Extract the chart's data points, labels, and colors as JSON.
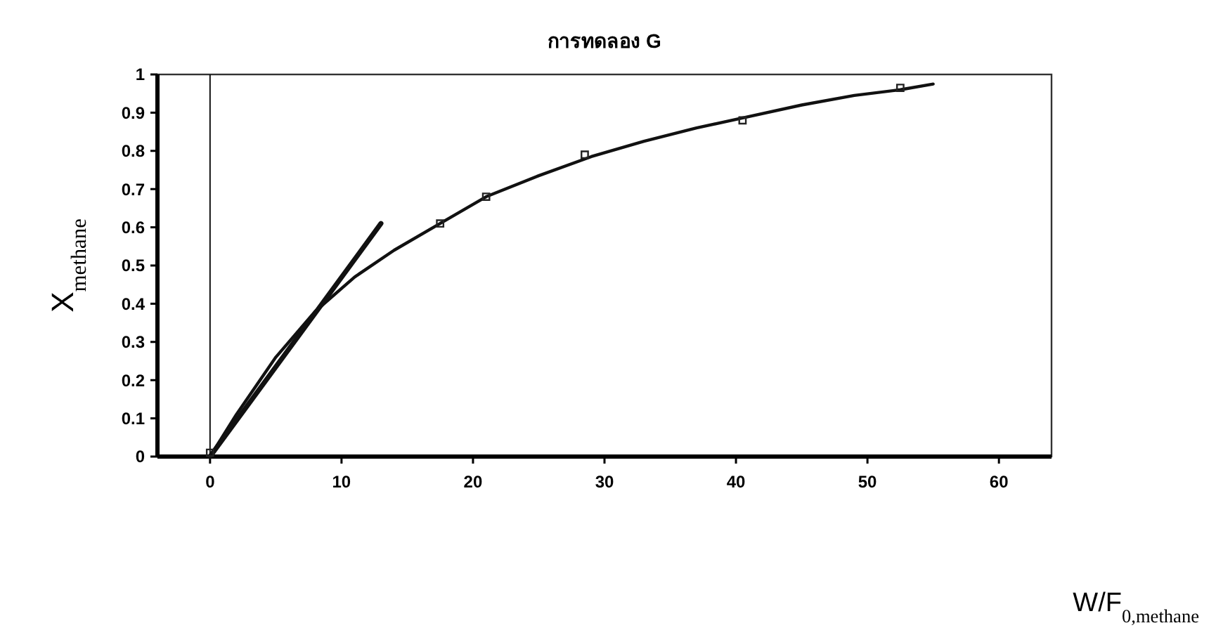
{
  "chart_data": {
    "type": "line",
    "title": "การทดลอง G",
    "xlabel": "W/F$_{0,methane}$",
    "ylabel": "X$_{methane}$",
    "xlim": [
      -4,
      64
    ],
    "xticks": [
      0,
      10,
      20,
      30,
      40,
      50,
      60
    ],
    "ylim": [
      0,
      1
    ],
    "yticks": [
      0,
      0.1,
      0.2,
      0.3,
      0.4,
      0.5,
      0.6,
      0.7,
      0.8,
      0.9,
      1
    ],
    "grid": false,
    "series": [
      {
        "color": "#111111",
        "marker": "none",
        "line_style": "solid",
        "x": [
          0,
          2,
          5,
          8,
          11,
          14,
          17.5,
          21,
          25,
          29,
          33,
          37,
          41,
          45,
          49,
          52.5,
          55
        ],
        "values": [
          0,
          0.11,
          0.26,
          0.38,
          0.47,
          0.54,
          0.61,
          0.68,
          0.735,
          0.785,
          0.825,
          0.86,
          0.89,
          0.92,
          0.945,
          0.96,
          0.975
        ]
      },
      {
        "color": "#111111",
        "marker": "none",
        "line_style": "solid",
        "x": [
          0,
          13
        ],
        "values": [
          0,
          0.61
        ]
      },
      {
        "type": "scatter",
        "color": "#222222",
        "marker": "square",
        "x": [
          0,
          17.5,
          21,
          28.5,
          40.5,
          52.5
        ],
        "values": [
          0.01,
          0.61,
          0.68,
          0.79,
          0.88,
          0.965
        ]
      }
    ],
    "ref_lines": [
      {
        "axis": "x",
        "value": 0,
        "color": "#111111"
      }
    ]
  }
}
